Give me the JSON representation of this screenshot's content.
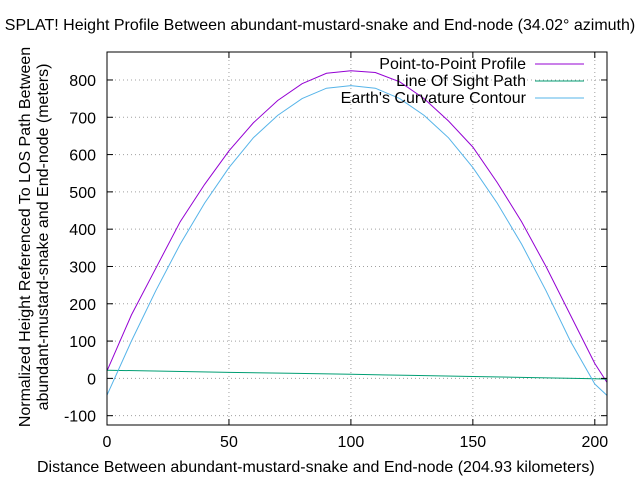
{
  "chart_data": {
    "type": "line",
    "title": "SPLAT! Height Profile Between abundant-mustard-snake and End-node (34.02° azimuth)",
    "xlabel": "Distance Between abundant-mustard-snake and End-node (204.93 kilometers)",
    "ylabel_line1": "Normalized Height Referenced To LOS Path Between",
    "ylabel_line2": "abundant-mustard-snake and End-node (meters)",
    "xlim": [
      0,
      205
    ],
    "ylim": [
      -125,
      875
    ],
    "x_ticks": [
      0,
      50,
      100,
      150,
      200
    ],
    "y_ticks": [
      -100,
      0,
      100,
      200,
      300,
      400,
      500,
      600,
      700,
      800
    ],
    "grid": true,
    "legend_position": "top-right",
    "series": [
      {
        "name": "Point-to-Point Profile",
        "color": "#9400d3",
        "x": [
          0,
          10,
          20,
          30,
          40,
          50,
          60,
          70,
          80,
          90,
          100,
          110,
          120,
          130,
          140,
          150,
          160,
          170,
          180,
          190,
          200,
          204.93
        ],
        "y": [
          20,
          170,
          295,
          420,
          520,
          610,
          685,
          745,
          790,
          818,
          825,
          820,
          795,
          750,
          690,
          620,
          525,
          420,
          300,
          170,
          40,
          -10
        ]
      },
      {
        "name": "Line Of Sight Path",
        "color": "#009e73",
        "x": [
          0,
          25,
          50,
          75,
          100,
          125,
          150,
          175,
          200,
          204.93
        ],
        "y": [
          22,
          19,
          16,
          14,
          11,
          8,
          5,
          2,
          -1,
          -2
        ]
      },
      {
        "name": "Earth's Curvature Contour",
        "color": "#56b4e9",
        "x": [
          0,
          10,
          20,
          30,
          40,
          50,
          60,
          70,
          80,
          90,
          100,
          110,
          120,
          130,
          140,
          150,
          160,
          170,
          180,
          190,
          200,
          204.93
        ],
        "y": [
          -45,
          100,
          235,
          360,
          470,
          565,
          645,
          705,
          750,
          778,
          785,
          778,
          750,
          705,
          645,
          565,
          470,
          360,
          235,
          100,
          -15,
          -45
        ]
      }
    ]
  }
}
